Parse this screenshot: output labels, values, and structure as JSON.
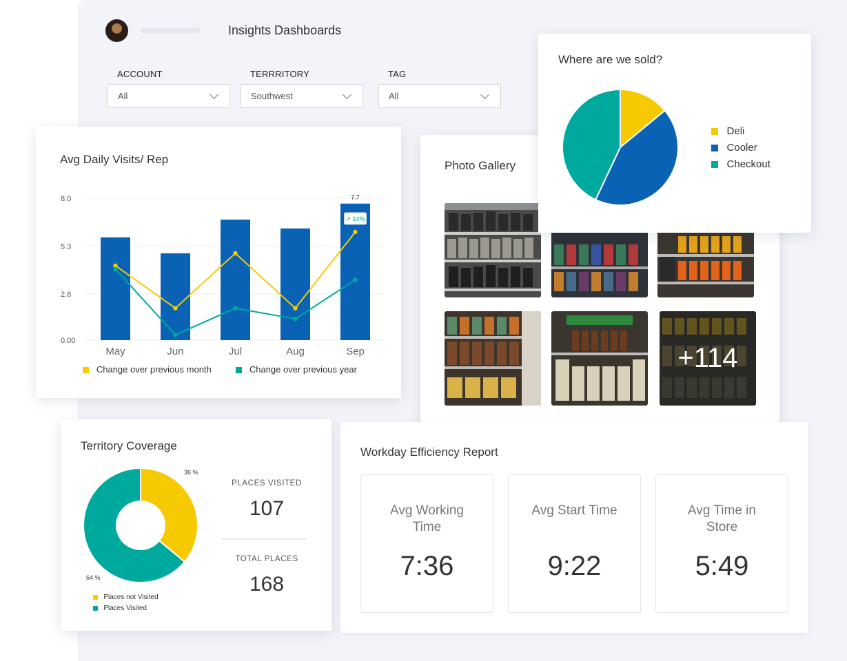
{
  "header": {
    "title": "Insights Dashboards"
  },
  "filters": [
    {
      "label": "ACCOUNT",
      "value": "All"
    },
    {
      "label": "TERRRITORY",
      "value": "Southwest"
    },
    {
      "label": "TAG",
      "value": "All"
    }
  ],
  "colors": {
    "blue": "#0962b4",
    "yellow": "#f7c900",
    "teal": "#00a99d",
    "accent_light": "#f3f4f9"
  },
  "visits_chart": {
    "title": "Avg Daily Visits/ Rep",
    "chart_data": {
      "type": "bar",
      "title": "Avg Daily Visits/ Rep",
      "categories": [
        "May",
        "Jun",
        "Jul",
        "Aug",
        "Sep"
      ],
      "values": [
        5.8,
        4.9,
        6.8,
        6.3,
        7.7
      ],
      "ylim": [
        0,
        8.0
      ],
      "yticks": [
        "0.00",
        "2.6",
        "5.3",
        "8.0"
      ],
      "series": [
        {
          "name": "Change over previous month",
          "values": [
            4.2,
            1.8,
            4.9,
            1.8,
            6.1
          ]
        },
        {
          "name": "Change over previous year",
          "values": [
            4.0,
            0.3,
            1.8,
            1.2,
            3.4
          ]
        }
      ],
      "top_label": "7.7",
      "callout": "↗ 14%"
    }
  },
  "where_sold": {
    "title": "Where are we sold?",
    "chart_data": {
      "type": "pie",
      "title": "Where are we sold?",
      "labels": [
        "Deli",
        "Cooler",
        "Checkout"
      ],
      "values": [
        14,
        43,
        43
      ]
    }
  },
  "gallery": {
    "title": "Photo Gallery",
    "more_label": "+114"
  },
  "coverage": {
    "title": "Territory Coverage",
    "chart_data": {
      "type": "pie",
      "labels": [
        "Places not Visited",
        "Places Visited"
      ],
      "values": [
        36,
        64
      ],
      "value_labels": [
        "36 %",
        "64 %"
      ]
    },
    "places_visited_label": "PLACES VISITED",
    "places_visited": "107",
    "total_places_label": "TOTAL PLACES",
    "total_places": "168"
  },
  "efficiency": {
    "title": "Workday Efficiency Report",
    "stats": [
      {
        "label": "Avg Working Time",
        "value": "7:36"
      },
      {
        "label": "Avg Start Time",
        "value": "9:22"
      },
      {
        "label": "Avg Time in Store",
        "value": "5:49"
      }
    ]
  }
}
